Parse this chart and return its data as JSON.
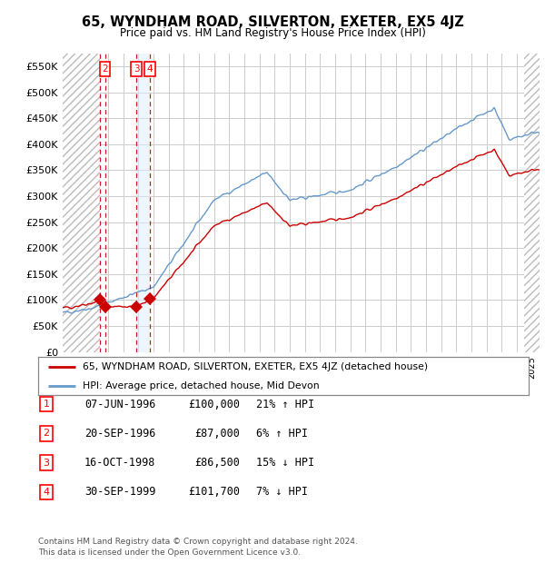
{
  "title": "65, WYNDHAM ROAD, SILVERTON, EXETER, EX5 4JZ",
  "subtitle": "Price paid vs. HM Land Registry's House Price Index (HPI)",
  "ylim": [
    0,
    575000
  ],
  "yticks": [
    0,
    50000,
    100000,
    150000,
    200000,
    250000,
    300000,
    350000,
    400000,
    450000,
    500000,
    550000
  ],
  "ytick_labels": [
    "£0",
    "£50K",
    "£100K",
    "£150K",
    "£200K",
    "£250K",
    "£300K",
    "£350K",
    "£400K",
    "£450K",
    "£500K",
    "£550K"
  ],
  "legend_property": "65, WYNDHAM ROAD, SILVERTON, EXETER, EX5 4JZ (detached house)",
  "legend_hpi": "HPI: Average price, detached house, Mid Devon",
  "t1_year": 1996.458,
  "t2_year": 1996.792,
  "t3_year": 1998.875,
  "t4_year": 1999.75,
  "t1_price": 100000,
  "t2_price": 87000,
  "t3_price": 86500,
  "t4_price": 101700,
  "transactions": [
    {
      "num": 1,
      "date": "07-JUN-1996",
      "price": "£100,000",
      "pct": "21%",
      "dir": "↑"
    },
    {
      "num": 2,
      "date": "20-SEP-1996",
      "price": "£87,000",
      "pct": "6%",
      "dir": "↑"
    },
    {
      "num": 3,
      "date": "16-OCT-1998",
      "price": "£86,500",
      "pct": "15%",
      "dir": "↓"
    },
    {
      "num": 4,
      "date": "30-SEP-1999",
      "price": "£101,700",
      "pct": "7%",
      "dir": "↓"
    }
  ],
  "footer": "Contains HM Land Registry data © Crown copyright and database right 2024.\nThis data is licensed under the Open Government Licence v3.0.",
  "property_color": "#cc0000",
  "hpi_color": "#6699cc",
  "grid_color": "#cccccc",
  "x_start_year": 1994,
  "x_end_year": 2025
}
